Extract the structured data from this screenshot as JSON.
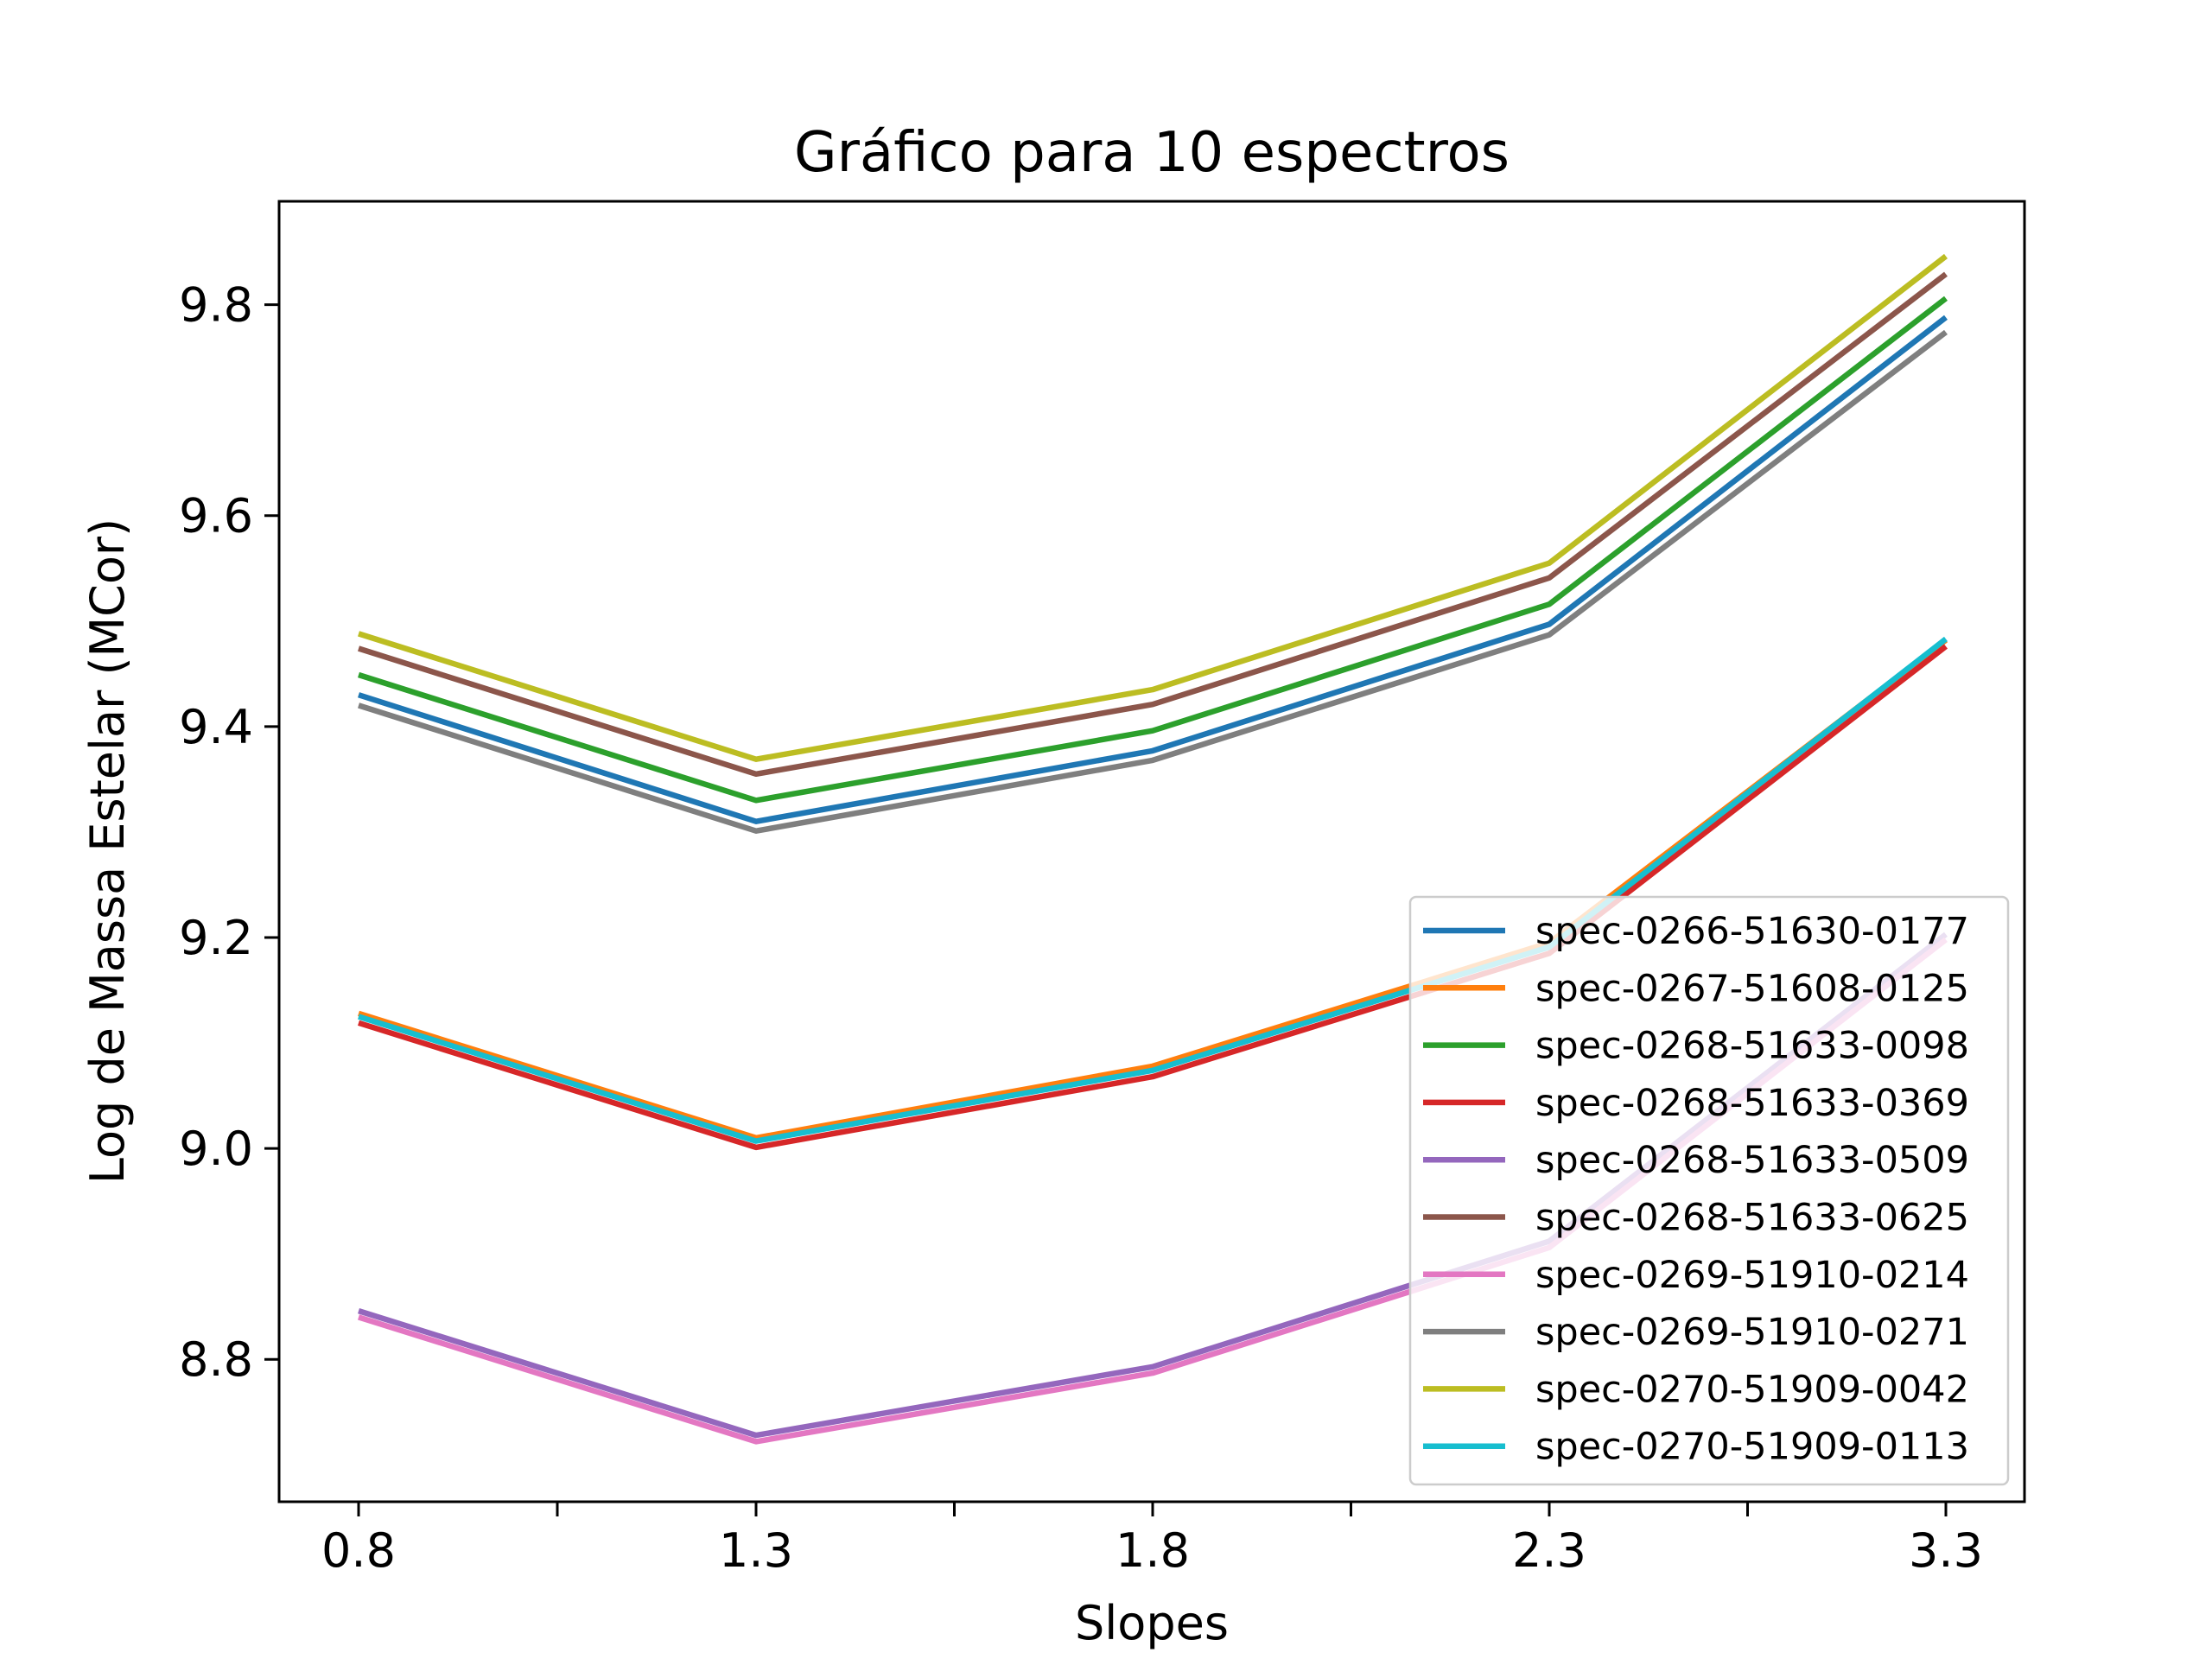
{
  "chart_data": {
    "type": "line",
    "title": "Gráfico para 10 espectros",
    "xlabel": "Slopes",
    "ylabel": "Log de Massa Estelar (MCor)",
    "x": [
      0.8,
      1.3,
      1.8,
      2.3,
      3.3
    ],
    "x_tick_labels": [
      "0.8",
      "1.3",
      "1.8",
      "2.3",
      "3.3"
    ],
    "y_ticks": [
      8.8,
      9.0,
      9.2,
      9.4,
      9.6,
      9.8
    ],
    "y_tick_labels": [
      "8.8",
      "9.0",
      "9.2",
      "9.4",
      "9.6",
      "9.8"
    ],
    "ylim": [
      8.665,
      9.898
    ],
    "grid": false,
    "legend_position": "lower-right",
    "series": [
      {
        "name": "spec-0266-51630-0177",
        "color": "#1f77b4",
        "values": [
          9.43,
          9.31,
          9.377,
          9.497,
          9.788
        ]
      },
      {
        "name": "spec-0267-51608-0125",
        "color": "#ff7f0e",
        "values": [
          9.128,
          9.01,
          9.078,
          9.195,
          9.482
        ]
      },
      {
        "name": "spec-0268-51633-0098",
        "color": "#2ca02c",
        "values": [
          9.449,
          9.33,
          9.396,
          9.516,
          9.806
        ]
      },
      {
        "name": "spec-0268-51633-0369",
        "color": "#d62728",
        "values": [
          9.119,
          9.001,
          9.068,
          9.185,
          9.476
        ]
      },
      {
        "name": "spec-0268-51633-0509",
        "color": "#9467bd",
        "values": [
          8.846,
          8.728,
          8.793,
          8.912,
          9.203
        ]
      },
      {
        "name": "spec-0268-51633-0625",
        "color": "#8c564b",
        "values": [
          9.474,
          9.355,
          9.421,
          9.541,
          9.829
        ]
      },
      {
        "name": "spec-0269-51910-0214",
        "color": "#e377c2",
        "values": [
          8.84,
          8.722,
          8.787,
          8.906,
          9.198
        ]
      },
      {
        "name": "spec-0269-51910-0271",
        "color": "#7f7f7f",
        "values": [
          9.42,
          9.301,
          9.368,
          9.487,
          9.774
        ]
      },
      {
        "name": "spec-0270-51909-0042",
        "color": "#bcbd22",
        "values": [
          9.488,
          9.369,
          9.435,
          9.555,
          9.846
        ]
      },
      {
        "name": "spec-0270-51909-0113",
        "color": "#17becf",
        "values": [
          9.125,
          9.007,
          9.074,
          9.191,
          9.483
        ]
      }
    ]
  }
}
